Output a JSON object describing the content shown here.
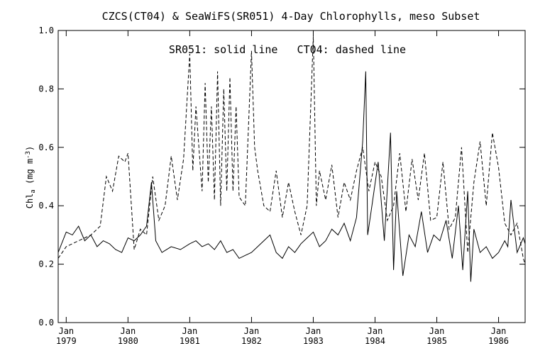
{
  "chart_data": {
    "type": "line",
    "title": "CZCS(CT04) & SeaWiFS(SR051) 4-Day Chlorophylls, meso Subset",
    "ylabel": "Chl_a (mg m^-3)",
    "xlabel": "",
    "annotation": "SR051: solid line   CT04: dashed line",
    "ylim": [
      0.0,
      1.0
    ],
    "xlim": [
      1978.87,
      1986.43
    ],
    "grid": false,
    "y_ticks": [
      "0.0",
      "0.2",
      "0.4",
      "0.6",
      "0.8",
      "1.0"
    ],
    "x_ticks": [
      {
        "month": "Jan",
        "year": "1979"
      },
      {
        "month": "Jan",
        "year": "1980"
      },
      {
        "month": "Jan",
        "year": "1981"
      },
      {
        "month": "Jan",
        "year": "1982"
      },
      {
        "month": "Jan",
        "year": "1983"
      },
      {
        "month": "Jan",
        "year": "1984"
      },
      {
        "month": "Jan",
        "year": "1985"
      },
      {
        "month": "Jan",
        "year": "1986"
      }
    ],
    "series": [
      {
        "name": "SR051",
        "style": "solid",
        "x": [
          1978.87,
          1979.0,
          1979.1,
          1979.2,
          1979.3,
          1979.4,
          1979.5,
          1979.6,
          1979.7,
          1979.8,
          1979.9,
          1980.0,
          1980.1,
          1980.2,
          1980.3,
          1980.38,
          1980.45,
          1980.55,
          1980.7,
          1980.85,
          1981.0,
          1981.1,
          1981.2,
          1981.3,
          1981.4,
          1981.5,
          1981.6,
          1981.7,
          1981.8,
          1981.9,
          1982.0,
          1982.1,
          1982.2,
          1982.3,
          1982.4,
          1982.5,
          1982.6,
          1982.7,
          1982.8,
          1982.9,
          1983.0,
          1983.1,
          1983.2,
          1983.3,
          1983.4,
          1983.5,
          1983.6,
          1983.7,
          1983.8,
          1983.85,
          1983.88,
          1983.95,
          1984.05,
          1984.15,
          1984.25,
          1984.3,
          1984.35,
          1984.45,
          1984.55,
          1984.65,
          1984.75,
          1984.85,
          1984.95,
          1985.05,
          1985.15,
          1985.25,
          1985.35,
          1985.42,
          1985.5,
          1985.55,
          1985.6,
          1985.7,
          1985.8,
          1985.9,
          1986.0,
          1986.1,
          1986.15,
          1986.2,
          1986.3,
          1986.4,
          1986.43
        ],
        "y": [
          0.24,
          0.31,
          0.3,
          0.33,
          0.28,
          0.3,
          0.26,
          0.28,
          0.27,
          0.25,
          0.24,
          0.29,
          0.28,
          0.3,
          0.33,
          0.48,
          0.28,
          0.24,
          0.26,
          0.25,
          0.27,
          0.28,
          0.26,
          0.27,
          0.25,
          0.28,
          0.24,
          0.25,
          0.22,
          0.23,
          0.24,
          0.26,
          0.28,
          0.3,
          0.24,
          0.22,
          0.26,
          0.24,
          0.27,
          0.29,
          0.31,
          0.26,
          0.28,
          0.32,
          0.3,
          0.34,
          0.28,
          0.36,
          0.62,
          0.86,
          0.3,
          0.4,
          0.55,
          0.28,
          0.65,
          0.18,
          0.45,
          0.16,
          0.3,
          0.26,
          0.38,
          0.24,
          0.3,
          0.28,
          0.35,
          0.22,
          0.4,
          0.18,
          0.45,
          0.14,
          0.32,
          0.24,
          0.26,
          0.22,
          0.24,
          0.28,
          0.26,
          0.42,
          0.24,
          0.29,
          0.27
        ]
      },
      {
        "name": "CT04",
        "style": "dashed",
        "x": [
          1978.87,
          1979.0,
          1979.2,
          1979.4,
          1979.55,
          1979.65,
          1979.75,
          1979.85,
          1979.95,
          1980.0,
          1980.1,
          1980.2,
          1980.3,
          1980.4,
          1980.5,
          1980.6,
          1980.7,
          1980.8,
          1980.9,
          1981.0,
          1981.05,
          1981.1,
          1981.2,
          1981.25,
          1981.3,
          1981.35,
          1981.4,
          1981.45,
          1981.5,
          1981.55,
          1981.6,
          1981.65,
          1981.7,
          1981.75,
          1981.8,
          1981.9,
          1982.0,
          1982.05,
          1982.1,
          1982.2,
          1982.3,
          1982.4,
          1982.5,
          1982.6,
          1982.7,
          1982.8,
          1982.9,
          1983.0,
          1983.05,
          1983.1,
          1983.2,
          1983.3,
          1983.4,
          1983.5,
          1983.6,
          1983.7,
          1983.8,
          1983.9,
          1984.0,
          1984.1,
          1984.2,
          1984.3,
          1984.4,
          1984.5,
          1984.6,
          1984.7,
          1984.8,
          1984.9,
          1985.0,
          1985.1,
          1985.2,
          1985.3,
          1985.4,
          1985.5,
          1985.6,
          1985.7,
          1985.8,
          1985.9,
          1986.0,
          1986.1,
          1986.2,
          1986.3,
          1986.4,
          1986.43
        ],
        "y": [
          0.22,
          0.26,
          0.28,
          0.3,
          0.33,
          0.5,
          0.45,
          0.57,
          0.55,
          0.58,
          0.25,
          0.32,
          0.3,
          0.5,
          0.35,
          0.4,
          0.57,
          0.42,
          0.56,
          0.92,
          0.52,
          0.74,
          0.45,
          0.82,
          0.48,
          0.74,
          0.42,
          0.86,
          0.4,
          0.8,
          0.45,
          0.84,
          0.45,
          0.74,
          0.43,
          0.4,
          0.93,
          0.6,
          0.52,
          0.4,
          0.38,
          0.52,
          0.36,
          0.48,
          0.38,
          0.3,
          0.4,
          0.98,
          0.4,
          0.52,
          0.42,
          0.54,
          0.36,
          0.48,
          0.42,
          0.52,
          0.6,
          0.45,
          0.55,
          0.5,
          0.35,
          0.4,
          0.58,
          0.38,
          0.56,
          0.42,
          0.58,
          0.35,
          0.36,
          0.55,
          0.32,
          0.36,
          0.6,
          0.24,
          0.48,
          0.62,
          0.4,
          0.65,
          0.53,
          0.34,
          0.3,
          0.34,
          0.22,
          0.2
        ]
      }
    ]
  }
}
